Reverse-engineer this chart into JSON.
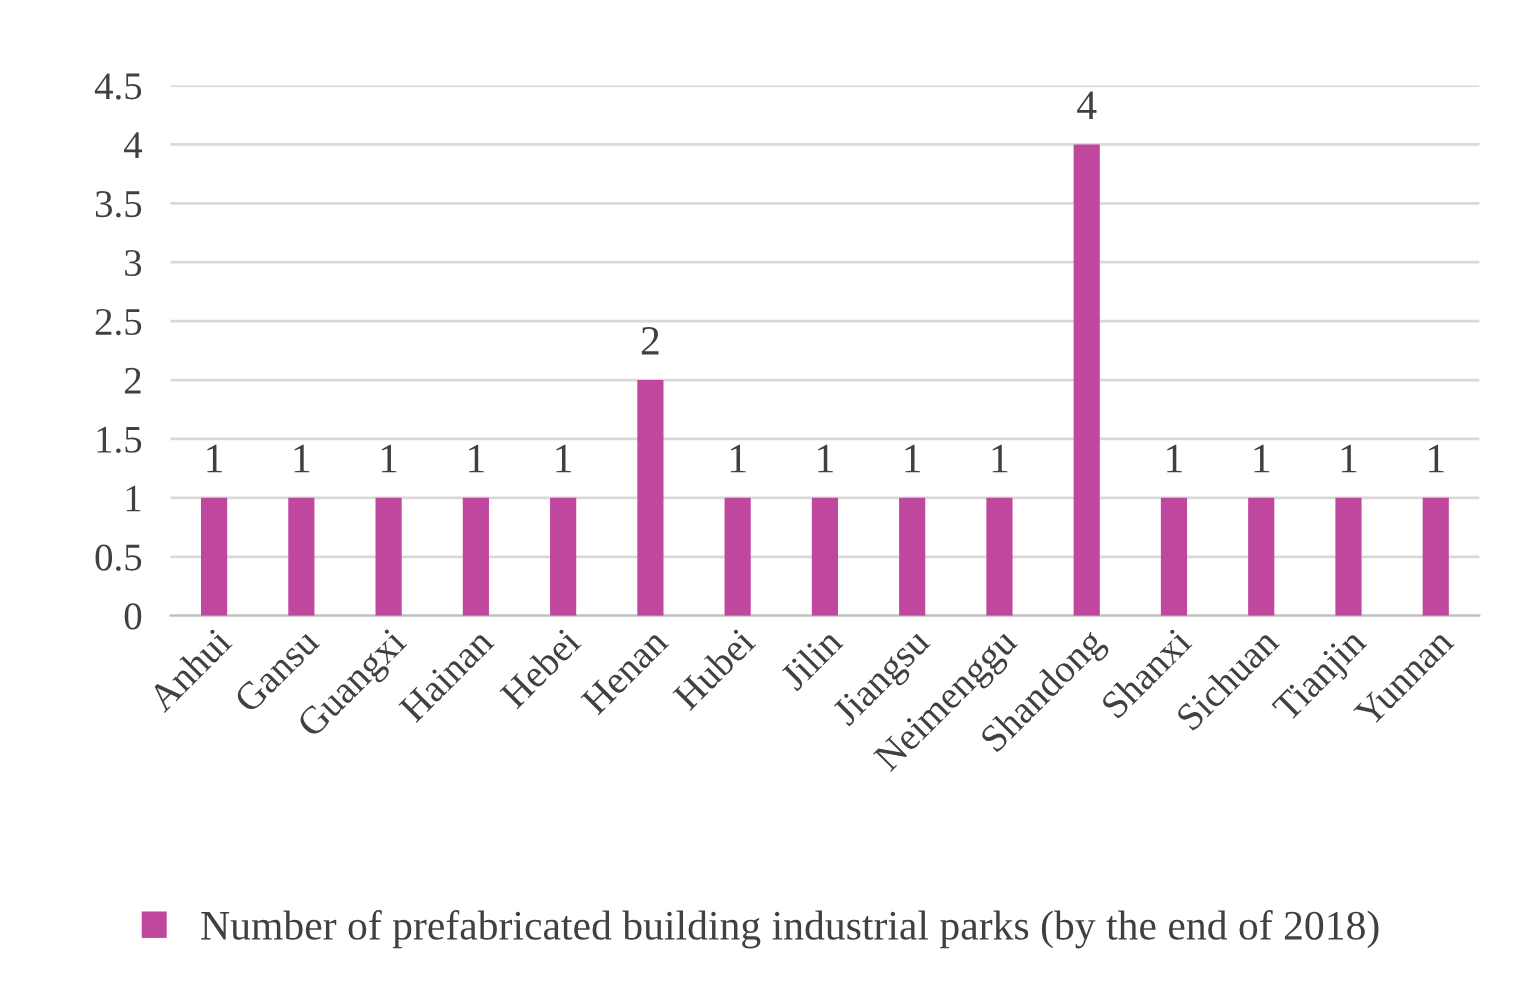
{
  "chart_data": {
    "type": "bar",
    "categories": [
      "Anhui",
      "Gansu",
      "Guangxi",
      "Hainan",
      "Hebei",
      "Henan",
      "Hubei",
      "Jilin",
      "Jiangsu",
      "Neimenggu",
      "Shandong",
      "Shanxi",
      "Sichuan",
      "Tianjin",
      "Yunnan"
    ],
    "series": [
      {
        "name": "Number of prefabricated building industrial parks (by the end of 2018)",
        "color": "#c0479e",
        "values": [
          1,
          1,
          1,
          1,
          1,
          2,
          1,
          1,
          1,
          1,
          4,
          1,
          1,
          1,
          1
        ]
      }
    ],
    "ylim": [
      0,
      4.5
    ],
    "yticks": [
      0,
      0.5,
      1,
      1.5,
      2,
      2.5,
      3,
      3.5,
      4,
      4.5
    ],
    "grid": "y",
    "legend": "bottom",
    "data_labels": true
  }
}
